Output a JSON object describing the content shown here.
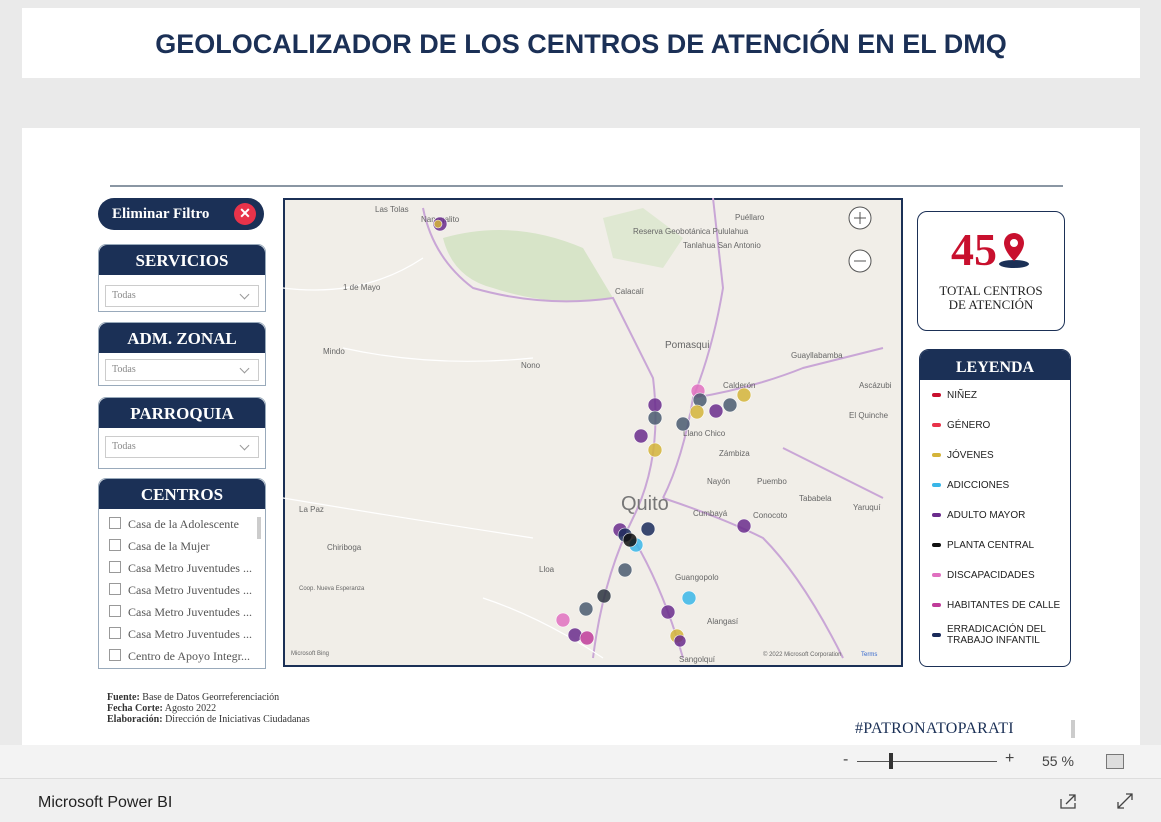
{
  "header": {
    "title": "GEOLOCALIZADOR DE LOS CENTROS DE ATENCIÓN EN EL DMQ"
  },
  "filters": {
    "clear": "Eliminar Filtro",
    "slicers": [
      {
        "title": "SERVICIOS",
        "value": "Todas"
      },
      {
        "title": "ADM. ZONAL",
        "value": "Todas"
      },
      {
        "title": "PARROQUIA",
        "value": "Todas"
      }
    ],
    "centros": {
      "title": "CENTROS",
      "items": [
        "Casa de la Adolescente",
        "Casa de la Mujer",
        "Casa Metro Juventudes ...",
        "Casa Metro Juventudes ...",
        "Casa Metro Juventudes ...",
        "Casa Metro Juventudes ...",
        "Centro de Apoyo Integr..."
      ]
    }
  },
  "map": {
    "labels": [
      "Las Tolas",
      "Nanegalito",
      "Reserva Geobotánica Pululahua",
      "Tanlahua San Antonio",
      "Puéllaro",
      "1 de Mayo",
      "Calacalí",
      "Mindo",
      "Nono",
      "Pomasqui",
      "Calderón",
      "Guayllabamba",
      "Ascázubi",
      "El Quinche",
      "Llano Chico",
      "Zámbiza",
      "Quito",
      "Nayón",
      "Puembo",
      "Tababela",
      "Yaruquí",
      "Cumbayá",
      "La Paz",
      "Chiriboga",
      "Lloa",
      "Coop. Nueva Esperanza",
      "Guangopolo",
      "Alangasí",
      "Sangolquí",
      "Conocoto"
    ],
    "attribution": "© 2022 Microsoft Corporation",
    "terms": "Terms",
    "bing": "Microsoft Bing"
  },
  "kpi": {
    "value": "45",
    "label": "TOTAL CENTROS DE ATENCIÓN"
  },
  "legend": {
    "title": "LEYENDA",
    "items": [
      {
        "name": "NIÑEZ",
        "color": "#c8102e"
      },
      {
        "name": "GÉNERO",
        "color": "#e8334a"
      },
      {
        "name": "JÓVENES",
        "color": "#d4b43a"
      },
      {
        "name": "ADICCIONES",
        "color": "#39b6e8"
      },
      {
        "name": "ADULTO MAYOR",
        "color": "#6a2c8c"
      },
      {
        "name": "PLANTA CENTRAL",
        "color": "#111111"
      },
      {
        "name": "DISCAPACIDADES",
        "color": "#e070c0"
      },
      {
        "name": "HABITANTES DE CALLE",
        "color": "#c03c9a"
      },
      {
        "name": "ERRADICACIÓN DEL TRABAJO INFANTIL",
        "color": "#1a2a5a"
      }
    ]
  },
  "footer": {
    "notes": [
      {
        "label": "Fuente:",
        "text": "Base de Datos Georreferenciación"
      },
      {
        "label": "Fecha Corte:",
        "text": "Agosto 2022"
      },
      {
        "label": "Elaboración:",
        "text": "Dirección de Iniciativas Ciudadanas"
      }
    ],
    "hashtag": "#PATRONATOPARATI"
  },
  "zoom": {
    "minus": "-",
    "plus": "+",
    "level": "55 %"
  },
  "app": {
    "name": "Microsoft Power BI"
  }
}
